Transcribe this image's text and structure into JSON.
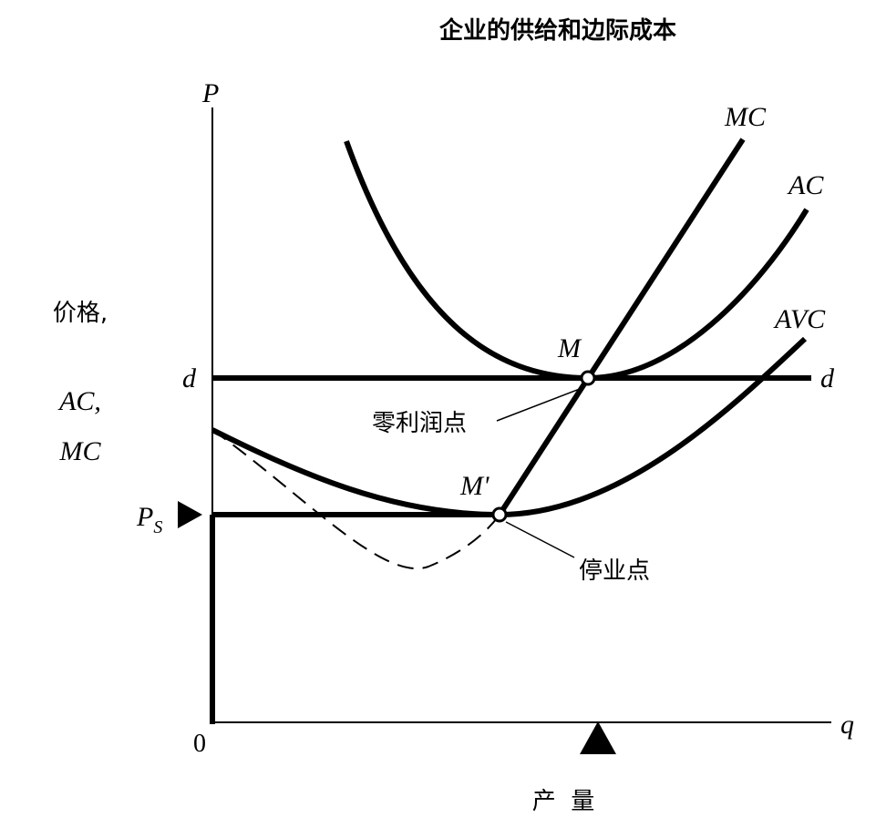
{
  "title": "企业的供给和边际成本",
  "axes": {
    "y_label": "P",
    "x_label": "q",
    "origin": "0",
    "y_title": [
      "价格,",
      "AC,",
      "MC"
    ],
    "x_title": "产  量"
  },
  "curves": {
    "mc": "MC",
    "ac": "AC",
    "avc": "AVC",
    "d_left": "d",
    "d_right": "d"
  },
  "points": {
    "m": "M",
    "m_prime": "M'",
    "zero_profit": "零利润点",
    "shutdown": "停业点",
    "ps": {
      "main": "P",
      "sub": "S"
    }
  }
}
